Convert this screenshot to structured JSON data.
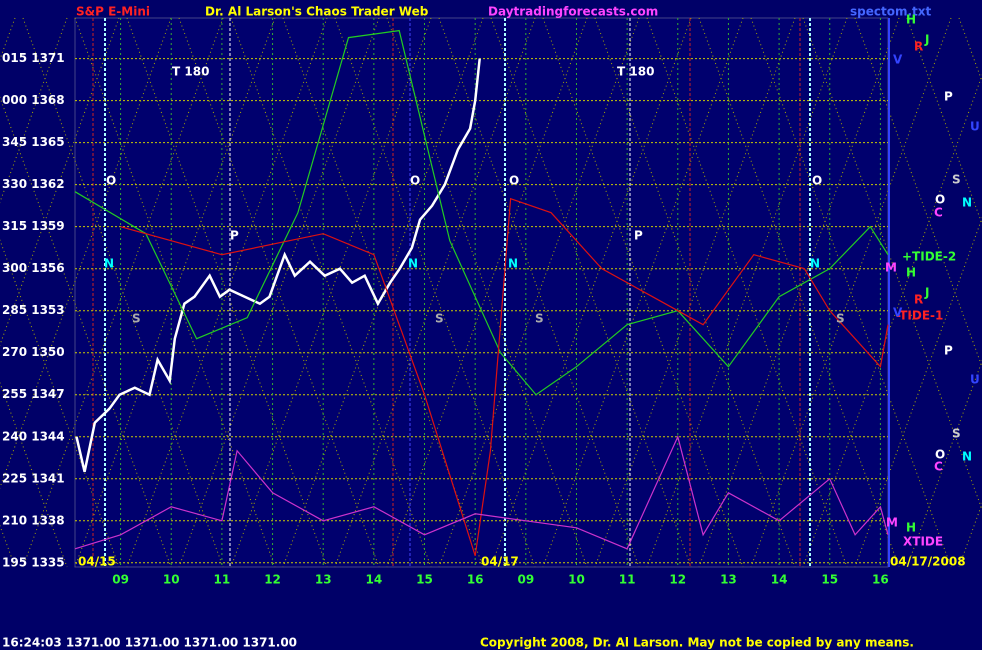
{
  "chart_data": {
    "type": "line",
    "title": "Dr. Al Larson's Chaos Trader Web",
    "symbol": "S&P E-Mini",
    "site": "Daytradingforecasts.com",
    "status": "16:24:03  1371.00 1371.00 1371.00 1371.00",
    "copyright": "Copyright 2008, Dr. Al Larson. May not be copied by any means.",
    "xlim": [
      -0.9,
      15.15
    ],
    "xticks": [
      {
        "value": 0,
        "label": "09"
      },
      {
        "value": 1,
        "label": "10"
      },
      {
        "value": 2,
        "label": "11"
      },
      {
        "value": 3,
        "label": "12"
      },
      {
        "value": 4,
        "label": "13"
      },
      {
        "value": 5,
        "label": "14"
      },
      {
        "value": 6,
        "label": "15"
      },
      {
        "value": 7,
        "label": "16"
      },
      {
        "value": 8,
        "label": "09"
      },
      {
        "value": 9,
        "label": "10"
      },
      {
        "value": 10,
        "label": "11"
      },
      {
        "value": 11,
        "label": "12"
      },
      {
        "value": 12,
        "label": "13"
      },
      {
        "value": 13,
        "label": "14"
      },
      {
        "value": 14,
        "label": "15"
      },
      {
        "value": 15,
        "label": "16"
      }
    ],
    "ylim": [
      1334.7,
      1373.9
    ],
    "yticks": [
      {
        "value": 1371,
        "label": "015 1371"
      },
      {
        "value": 1368,
        "label": "000 1368"
      },
      {
        "value": 1365,
        "label": "345 1365"
      },
      {
        "value": 1362,
        "label": "330 1362"
      },
      {
        "value": 1359,
        "label": "315 1359"
      },
      {
        "value": 1356,
        "label": "300 1356"
      },
      {
        "value": 1353,
        "label": "285 1353"
      },
      {
        "value": 1350,
        "label": "270 1350"
      },
      {
        "value": 1347,
        "label": "255 1347"
      },
      {
        "value": 1344,
        "label": "240 1344"
      },
      {
        "value": 1341,
        "label": "225 1341"
      },
      {
        "value": 1338,
        "label": "210 1338"
      },
      {
        "value": 1335,
        "label": "195 1335"
      }
    ],
    "grid": true,
    "series": [
      {
        "color": "#ffffff",
        "x": [
          -0.87,
          -0.71,
          -0.51,
          -0.22,
          -0.02,
          0.28,
          0.57,
          0.73,
          0.97,
          1.07,
          1.26,
          1.46,
          1.76,
          1.96,
          2.15,
          2.45,
          2.75,
          2.94,
          3.24,
          3.44,
          3.74,
          4.03,
          4.33,
          4.57,
          4.82,
          5.08,
          5.32,
          5.51,
          5.75,
          5.91,
          6.15,
          6.4,
          6.66,
          6.9,
          7.0,
          7.09
        ],
        "values": [
          1344,
          1341.5,
          1345,
          1346,
          1347,
          1347.5,
          1347,
          1349.5,
          1348,
          1351,
          1353.5,
          1354,
          1355.5,
          1354,
          1354.5,
          1354,
          1353.5,
          1354,
          1357,
          1355.5,
          1356.5,
          1355.5,
          1356,
          1355,
          1355.5,
          1353.5,
          1355,
          1356,
          1357.5,
          1359.5,
          1360.5,
          1362,
          1364.5,
          1366,
          1368,
          1371
        ]
      },
      {
        "color": "#22cc22",
        "x": [
          -0.9,
          0.5,
          1.5,
          2.5,
          3.5,
          4.5,
          5.5,
          6.5,
          7.5,
          8.2,
          9,
          10,
          11,
          12,
          13,
          14,
          14.8,
          15.15
        ],
        "values": [
          1361.5,
          1358.5,
          1351,
          1352.5,
          1360,
          1372.5,
          1373,
          1358,
          1350,
          1347,
          1349,
          1352,
          1353,
          1349,
          1354,
          1356,
          1359,
          1357
        ]
      },
      {
        "color": "#dd1111",
        "x": [
          0,
          2,
          4,
          5,
          6,
          7,
          7.3,
          7.7,
          8.5,
          9.5,
          10.5,
          11.5,
          12.5,
          13.5,
          14,
          14.5,
          15,
          15.15
        ],
        "values": [
          1359,
          1357,
          1358.5,
          1357,
          1347,
          1335.5,
          1343,
          1361,
          1360,
          1356,
          1354,
          1352,
          1357,
          1356,
          1353,
          1351,
          1349,
          1352
        ]
      },
      {
        "color": "#cc33cc",
        "x": [
          -0.9,
          0,
          1,
          2,
          2.3,
          3,
          4,
          5,
          6,
          7,
          8,
          9,
          10,
          11,
          11.5,
          12,
          13,
          14,
          14.5,
          15,
          15.15
        ],
        "values": [
          1336,
          1337,
          1339,
          1338,
          1343,
          1340,
          1338,
          1339,
          1337,
          1338.5,
          1338,
          1337.5,
          1336,
          1344,
          1337,
          1340,
          1338,
          1341,
          1337,
          1339,
          1337
        ]
      }
    ],
    "annotations": [
      {
        "text": "T 180",
        "color": "#ffffff"
      },
      {
        "text": "T 180",
        "color": "#ffffff"
      },
      {
        "text": "O",
        "color": "#ffffff"
      },
      {
        "text": "O",
        "color": "#ffffff"
      },
      {
        "text": "O",
        "color": "#ffffff"
      },
      {
        "text": "O",
        "color": "#ffffff"
      },
      {
        "text": "N",
        "color": "#00ffff"
      },
      {
        "text": "N",
        "color": "#00ffff"
      },
      {
        "text": "N",
        "color": "#00ffff"
      },
      {
        "text": "N",
        "color": "#00ffff"
      },
      {
        "text": "P",
        "color": "#ffffff"
      },
      {
        "text": "P",
        "color": "#ffffff"
      },
      {
        "text": "S",
        "color": "#aaaaaa"
      },
      {
        "text": "S",
        "color": "#aaaaaa"
      },
      {
        "text": "S",
        "color": "#aaaaaa"
      },
      {
        "text": "S",
        "color": "#aaaaaa"
      },
      {
        "text": "+TIDE-2",
        "color": "#33ff33"
      },
      {
        "text": "-TIDE-1",
        "color": "#ff2222"
      },
      {
        "text": "XTIDE",
        "color": "#ff44ff"
      },
      {
        "text": "04/15",
        "color": "#ffff00"
      },
      {
        "text": "04/17",
        "color": "#ffff00"
      },
      {
        "text": "04/17/2008",
        "color": "#ffff00"
      },
      {
        "text": "spectom.txt",
        "color": "#4466ff"
      },
      {
        "text": "H",
        "color": "#33ff33"
      },
      {
        "text": "R",
        "color": "#ff2222"
      },
      {
        "text": "J",
        "color": "#33ff33"
      },
      {
        "text": "V",
        "color": "#3344ff"
      },
      {
        "text": "P",
        "color": "#ffffff"
      },
      {
        "text": "U",
        "color": "#3344ff"
      },
      {
        "text": "S",
        "color": "#cccccc"
      },
      {
        "text": "O",
        "color": "#ffffff"
      },
      {
        "text": "N",
        "color": "#00ffff"
      },
      {
        "text": "C",
        "color": "#ff44ff"
      },
      {
        "text": "M",
        "color": "#ff44ff"
      },
      {
        "text": "H",
        "color": "#33ff33"
      },
      {
        "text": "R",
        "color": "#ff2222"
      },
      {
        "text": "J",
        "color": "#33ff33"
      },
      {
        "text": "V",
        "color": "#3344ff"
      },
      {
        "text": "P",
        "color": "#ffffff"
      },
      {
        "text": "U",
        "color": "#3344ff"
      },
      {
        "text": "S",
        "color": "#cccccc"
      },
      {
        "text": "O",
        "color": "#ffffff"
      },
      {
        "text": "N",
        "color": "#00ffff"
      },
      {
        "text": "C",
        "color": "#ff44ff"
      },
      {
        "text": "M",
        "color": "#ff44ff"
      },
      {
        "text": "H",
        "color": "#33ff33"
      }
    ]
  }
}
